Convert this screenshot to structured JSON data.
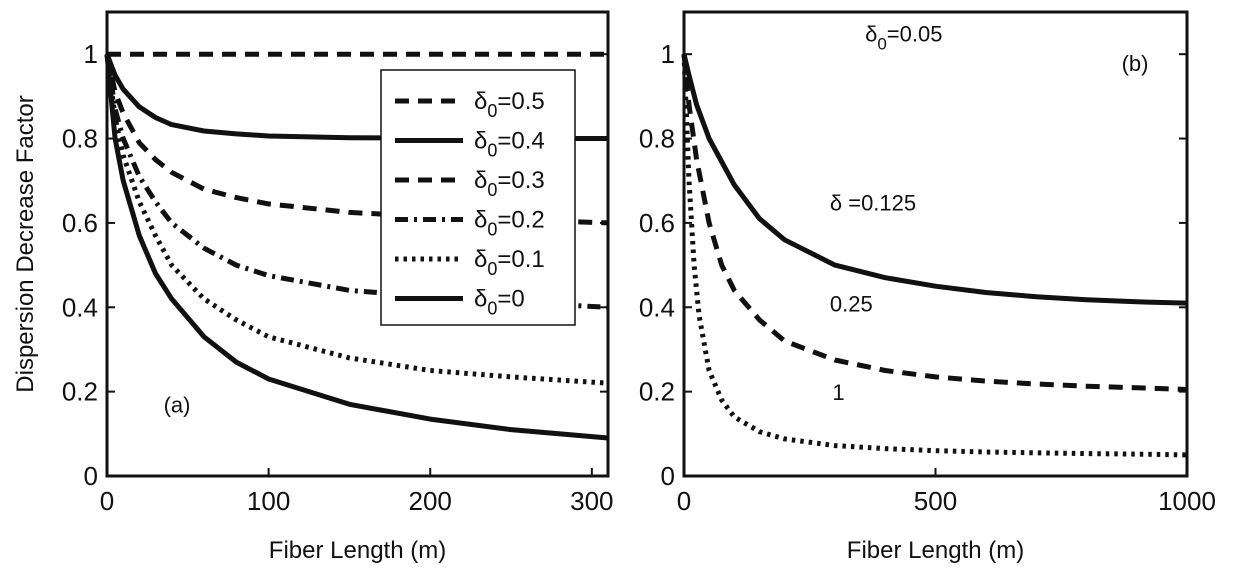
{
  "chart_data": [
    {
      "panel_label": "(a)",
      "type": "line",
      "xlabel": "Fiber Length (m)",
      "ylabel": "Dispersion Decrease Factor",
      "xlim": [
        0,
        310
      ],
      "ylim": [
        0,
        1.1
      ],
      "xticks": [
        "0",
        "100",
        "200",
        "300"
      ],
      "yticks": [
        "0",
        "0.2",
        "0.4",
        "0.6",
        "0.8",
        "1"
      ],
      "grid": false,
      "legend": {
        "position": "top-right",
        "subscript": "0"
      },
      "series": [
        {
          "name": "δ0=0.5",
          "legend_symbol": "δ",
          "legend_value": "=0.5",
          "style": "dashed",
          "x": [
            0,
            10,
            20,
            40,
            60,
            80,
            100,
            150,
            200,
            250,
            310
          ],
          "y": [
            1.0,
            1.0,
            1.0,
            1.0,
            1.0,
            1.0,
            1.0,
            1.0,
            1.0,
            1.0,
            1.0
          ]
        },
        {
          "name": "δ0=0.4",
          "legend_symbol": "δ",
          "legend_value": "=0.4",
          "style": "solid",
          "x": [
            0,
            5,
            10,
            20,
            30,
            40,
            60,
            80,
            100,
            150,
            200,
            250,
            310
          ],
          "y": [
            1.0,
            0.95,
            0.917,
            0.875,
            0.85,
            0.833,
            0.818,
            0.811,
            0.806,
            0.802,
            0.801,
            0.8,
            0.8
          ]
        },
        {
          "name": "δ0=0.3",
          "legend_symbol": "δ",
          "legend_value": "=0.3",
          "style": "dashed",
          "x": [
            0,
            5,
            10,
            20,
            30,
            40,
            60,
            80,
            100,
            150,
            200,
            250,
            310
          ],
          "y": [
            1.0,
            0.91,
            0.86,
            0.79,
            0.75,
            0.72,
            0.68,
            0.66,
            0.645,
            0.625,
            0.615,
            0.608,
            0.6
          ]
        },
        {
          "name": "δ0=0.2",
          "legend_symbol": "δ",
          "legend_value": "=0.2",
          "style": "dashdot",
          "x": [
            0,
            5,
            10,
            20,
            30,
            40,
            60,
            80,
            100,
            150,
            200,
            250,
            310
          ],
          "y": [
            1.0,
            0.87,
            0.8,
            0.71,
            0.65,
            0.6,
            0.54,
            0.5,
            0.475,
            0.44,
            0.425,
            0.412,
            0.4
          ]
        },
        {
          "name": "δ0=0.1",
          "legend_symbol": "δ",
          "legend_value": "=0.1",
          "style": "dotted",
          "x": [
            0,
            5,
            10,
            20,
            30,
            40,
            60,
            80,
            100,
            150,
            200,
            250,
            310
          ],
          "y": [
            1.0,
            0.85,
            0.76,
            0.65,
            0.57,
            0.5,
            0.42,
            0.37,
            0.33,
            0.28,
            0.25,
            0.235,
            0.22
          ]
        },
        {
          "name": "δ0=0",
          "legend_symbol": "δ",
          "legend_value": "=0",
          "style": "solid",
          "x": [
            0,
            5,
            10,
            20,
            30,
            40,
            60,
            80,
            100,
            150,
            200,
            250,
            310
          ],
          "y": [
            1.0,
            0.8,
            0.7,
            0.57,
            0.48,
            0.42,
            0.33,
            0.27,
            0.23,
            0.17,
            0.135,
            0.11,
            0.09
          ]
        }
      ],
      "annotations": [
        {
          "text": "(a)",
          "x": 35,
          "y": 0.15
        }
      ]
    },
    {
      "panel_label": "(b)",
      "type": "line",
      "xlabel": "Fiber Length (m)",
      "ylabel": "",
      "xlim": [
        0,
        1000
      ],
      "ylim": [
        0,
        1.1
      ],
      "xticks": [
        "0",
        "500",
        "1000"
      ],
      "yticks": [
        "0",
        "0.2",
        "0.4",
        "0.6",
        "0.8",
        "1"
      ],
      "grid": false,
      "series": [
        {
          "label": "δ =0.125",
          "style": "solid",
          "x": [
            0,
            10,
            25,
            50,
            100,
            150,
            200,
            300,
            400,
            500,
            600,
            700,
            800,
            900,
            1000
          ],
          "y": [
            1.0,
            0.95,
            0.88,
            0.8,
            0.69,
            0.61,
            0.56,
            0.5,
            0.47,
            0.45,
            0.435,
            0.425,
            0.418,
            0.413,
            0.41
          ]
        },
        {
          "label": "0.25",
          "style": "dashed",
          "x": [
            0,
            10,
            25,
            50,
            75,
            100,
            150,
            200,
            300,
            400,
            500,
            600,
            700,
            800,
            900,
            1000
          ],
          "y": [
            1.0,
            0.88,
            0.75,
            0.6,
            0.5,
            0.44,
            0.37,
            0.32,
            0.275,
            0.25,
            0.235,
            0.225,
            0.218,
            0.213,
            0.209,
            0.205
          ]
        },
        {
          "label": "1",
          "style": "dotted",
          "x": [
            0,
            5,
            10,
            20,
            30,
            50,
            75,
            100,
            150,
            200,
            300,
            400,
            500,
            600,
            700,
            800,
            900,
            1000
          ],
          "y": [
            1.0,
            0.85,
            0.7,
            0.5,
            0.38,
            0.25,
            0.18,
            0.14,
            0.105,
            0.088,
            0.072,
            0.065,
            0.06,
            0.057,
            0.055,
            0.053,
            0.052,
            0.05
          ]
        }
      ],
      "annotations": [
        {
          "text": "δ",
          "sub": "0",
          "text2": "=0.05",
          "x": 360,
          "y": 1.03
        },
        {
          "text": "(b)",
          "x": 870,
          "y": 0.96
        },
        {
          "text": "δ =0.125",
          "x": 290,
          "y": 0.63
        },
        {
          "text": "0.25",
          "x": 290,
          "y": 0.39
        },
        {
          "text": "1",
          "x": 295,
          "y": 0.18
        }
      ]
    }
  ]
}
